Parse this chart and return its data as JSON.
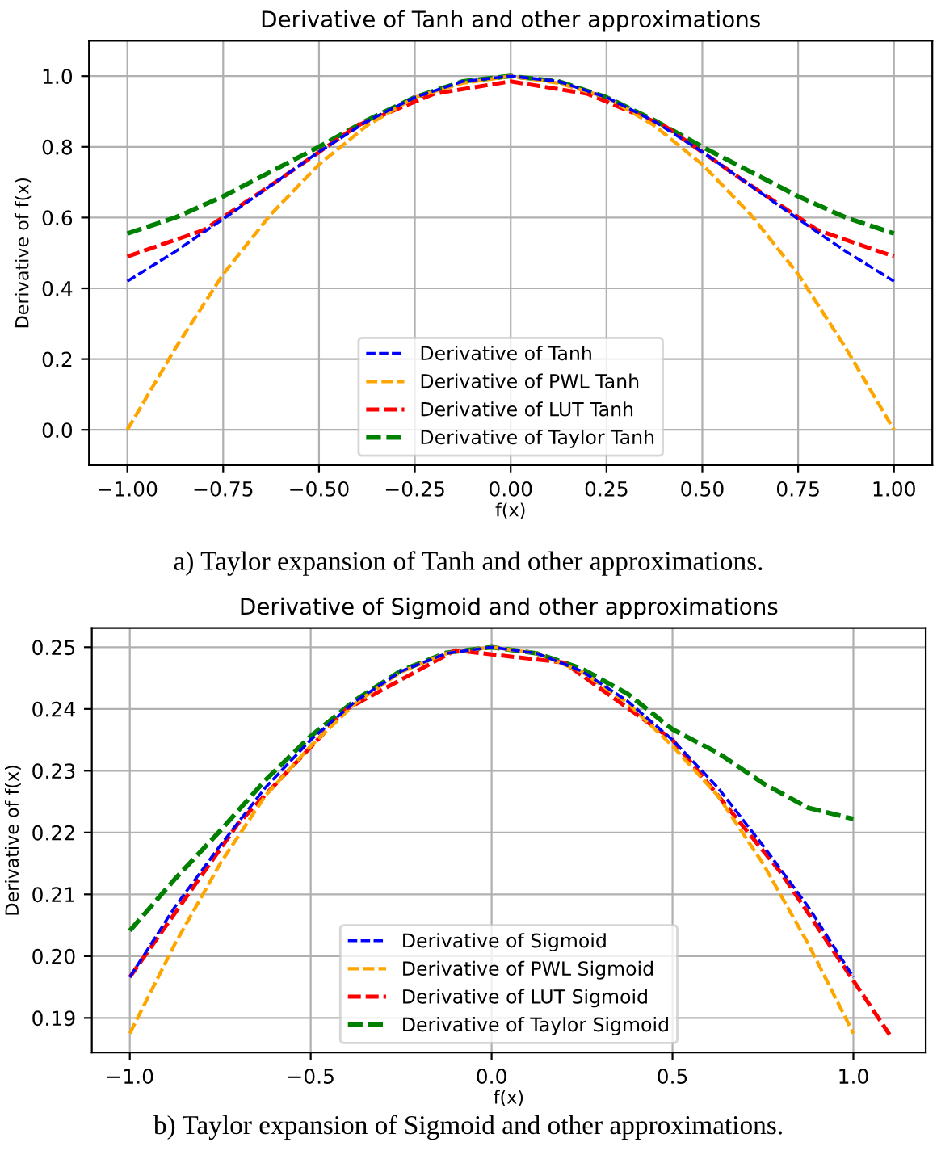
{
  "chart_data": [
    {
      "type": "line",
      "title": "Derivative of Tanh and other approximations",
      "xlabel": "f(x)",
      "ylabel": "Derivative of f(x)",
      "annotations": [
        "a) Taylor expansion of Tanh and other approximations."
      ],
      "xlim": [
        -1.1,
        1.1
      ],
      "ylim": [
        -0.1,
        1.1
      ],
      "xticks": [
        {
          "value": -1,
          "label": "−1.00"
        },
        {
          "value": -0.75,
          "label": "−0.75"
        },
        {
          "value": -0.5,
          "label": "−0.50"
        },
        {
          "value": -0.25,
          "label": "−0.25"
        },
        {
          "value": 0,
          "label": "0.00"
        },
        {
          "value": 0.25,
          "label": "0.25"
        },
        {
          "value": 0.5,
          "label": "0.50"
        },
        {
          "value": 0.75,
          "label": "0.75"
        },
        {
          "value": 1,
          "label": "1.00"
        }
      ],
      "yticks": [
        {
          "value": 0,
          "label": "0.0"
        },
        {
          "value": 0.2,
          "label": "0.2"
        },
        {
          "value": 0.4,
          "label": "0.4"
        },
        {
          "value": 0.6,
          "label": "0.6"
        },
        {
          "value": 0.8,
          "label": "0.8"
        },
        {
          "value": 1,
          "label": "1.0"
        }
      ],
      "grid": true,
      "legend": "bottom",
      "line_style": "dashed",
      "marker": "none",
      "series": [
        {
          "name": "Derivative of Tanh",
          "color": "#0000ff",
          "x": [
            -1,
            -0.875,
            -0.75,
            -0.625,
            -0.5,
            -0.375,
            -0.25,
            -0.125,
            0,
            0.125,
            0.25,
            0.375,
            0.5,
            0.625,
            0.75,
            0.875,
            1
          ],
          "values": [
            0.42,
            0.504,
            0.596,
            0.691,
            0.786,
            0.872,
            0.94,
            0.985,
            1.0,
            0.985,
            0.94,
            0.872,
            0.786,
            0.691,
            0.596,
            0.504,
            0.42
          ]
        },
        {
          "name": "Derivative of PWL Tanh",
          "color": "#ffa500",
          "x": [
            -1,
            -0.875,
            -0.75,
            -0.625,
            -0.5,
            -0.375,
            -0.25,
            -0.125,
            0,
            0.125,
            0.25,
            0.375,
            0.5,
            0.625,
            0.75,
            0.875,
            1
          ],
          "values": [
            0,
            0.23,
            0.44,
            0.61,
            0.75,
            0.86,
            0.94,
            0.98,
            1.0,
            0.98,
            0.94,
            0.86,
            0.75,
            0.61,
            0.44,
            0.23,
            0
          ]
        },
        {
          "name": "Derivative of LUT Tanh",
          "color": "#ff0000",
          "x": [
            -1,
            -0.8,
            -0.6,
            -0.4,
            -0.2,
            0,
            0.2,
            0.4,
            0.6,
            0.8,
            1
          ],
          "values": [
            0.49,
            0.565,
            0.71,
            0.86,
            0.95,
            0.985,
            0.95,
            0.86,
            0.71,
            0.565,
            0.49
          ]
        },
        {
          "name": "Derivative of Taylor Tanh",
          "color": "#008000",
          "x": [
            -1,
            -0.875,
            -0.75,
            -0.625,
            -0.5,
            -0.375,
            -0.25,
            -0.125,
            0,
            0.125,
            0.25,
            0.375,
            0.5,
            0.625,
            0.75,
            0.875,
            1
          ],
          "values": [
            0.555,
            0.6,
            0.66,
            0.73,
            0.8,
            0.875,
            0.94,
            0.985,
            1.0,
            0.985,
            0.94,
            0.875,
            0.8,
            0.73,
            0.66,
            0.6,
            0.555
          ]
        }
      ]
    },
    {
      "type": "line",
      "title": "Derivative of Sigmoid and other approximations",
      "xlabel": "f(x)",
      "ylabel": "Derivative of f(x)",
      "annotations": [
        "b) Taylor expansion of Sigmoid and other approximations."
      ],
      "xlim": [
        -1.105,
        1.2
      ],
      "ylim": [
        0.1844,
        0.2531
      ],
      "xticks": [
        {
          "value": -1,
          "label": "−1.0"
        },
        {
          "value": -0.5,
          "label": "−0.5"
        },
        {
          "value": 0,
          "label": "0.0"
        },
        {
          "value": 0.5,
          "label": "0.5"
        },
        {
          "value": 1,
          "label": "1.0"
        }
      ],
      "yticks": [
        0.19,
        {
          "value": 0.2,
          "label": "0.20"
        },
        0.21,
        0.22,
        0.23,
        0.24,
        0.25
      ],
      "grid": true,
      "legend": "bottom",
      "line_style": "dashed",
      "marker": "none",
      "series": [
        {
          "name": "Derivative of Sigmoid",
          "color": "#0000ff",
          "x": [
            -1,
            -0.875,
            -0.75,
            -0.625,
            -0.5,
            -0.375,
            -0.25,
            -0.125,
            0,
            0.125,
            0.25,
            0.375,
            0.5,
            0.625,
            0.75,
            0.875,
            1
          ],
          "values": [
            0.1966,
            0.208,
            0.2179,
            0.2273,
            0.235,
            0.2413,
            0.2461,
            0.249,
            0.25,
            0.249,
            0.2461,
            0.2413,
            0.235,
            0.2273,
            0.2179,
            0.208,
            0.1966
          ]
        },
        {
          "name": "Derivative of PWL Sigmoid",
          "color": "#ffa500",
          "x": [
            -1,
            -0.875,
            -0.75,
            -0.625,
            -0.5,
            -0.375,
            -0.25,
            -0.125,
            0,
            0.125,
            0.25,
            0.375,
            0.5,
            0.625,
            0.75,
            0.875,
            1
          ],
          "values": [
            0.1875,
            0.202,
            0.215,
            0.226,
            0.234,
            0.241,
            0.246,
            0.249,
            0.25,
            0.249,
            0.246,
            0.241,
            0.234,
            0.226,
            0.215,
            0.202,
            0.1875
          ]
        },
        {
          "name": "Derivative of LUT Sigmoid",
          "color": "#ff0000",
          "x": [
            -1,
            -0.7,
            -0.4,
            -0.1,
            0.2,
            0.5,
            0.8,
            1.1
          ],
          "values": [
            0.1966,
            0.2215,
            0.24,
            0.2495,
            0.2475,
            0.235,
            0.2135,
            0.1873
          ]
        },
        {
          "name": "Derivative of Taylor Sigmoid",
          "color": "#008000",
          "x": [
            -1,
            -0.875,
            -0.75,
            -0.625,
            -0.5,
            -0.375,
            -0.25,
            -0.125,
            0,
            0.125,
            0.25,
            0.375,
            0.5,
            0.625,
            0.75,
            0.875,
            1
          ],
          "values": [
            0.2041,
            0.2125,
            0.2203,
            0.2285,
            0.2356,
            0.2415,
            0.2462,
            0.2491,
            0.25,
            0.249,
            0.2465,
            0.2425,
            0.2367,
            0.2329,
            0.228,
            0.224,
            0.2222
          ]
        }
      ]
    }
  ]
}
